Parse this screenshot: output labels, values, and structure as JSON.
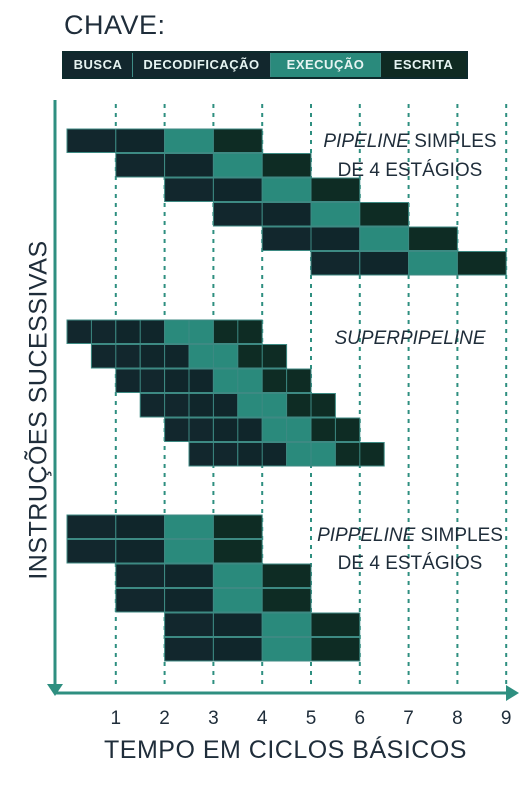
{
  "title": "CHAVE:",
  "legend": [
    {
      "label": "BUSCA",
      "color": "#12272d"
    },
    {
      "label": "DECODIFICAÇÃO",
      "color": "#12272d"
    },
    {
      "label": "EXECUÇÃO",
      "color": "#2a8a7c"
    },
    {
      "label": "ESCRITA",
      "color": "#0f2a22"
    }
  ],
  "ylabel": "INSTRUÇÕES SUCESSIVAS",
  "xlabel": "TEMPO EM CICLOS BÁSICOS",
  "ticks": [
    "1",
    "2",
    "3",
    "4",
    "5",
    "6",
    "7",
    "8",
    "9"
  ],
  "sections": [
    {
      "caption_parts": [
        [
          {
            "t": "PIPELINE",
            "i": true
          },
          {
            "t": " SIMPLES",
            "i": false
          }
        ],
        [
          {
            "t": "DE 4 ESTÁGIOS",
            "i": false
          }
        ]
      ],
      "stage_len": 1,
      "starts": [
        0,
        1,
        2,
        3,
        4,
        5
      ],
      "rows": 6
    },
    {
      "caption_parts": [
        [
          {
            "t": "SUPERPIPELINE",
            "i": true
          }
        ]
      ],
      "stage_len": 1,
      "starts": [
        0,
        0.5,
        1,
        1.5,
        2,
        2.5
      ],
      "rows": 6,
      "split": true
    },
    {
      "caption_parts": [
        [
          {
            "t": "PIPPELINE",
            "i": true
          },
          {
            "t": " SIMPLES",
            "i": false
          }
        ],
        [
          {
            "t": "DE 4 ESTÁGIOS",
            "i": false
          }
        ]
      ],
      "stage_len": 1,
      "starts": [
        0,
        0,
        1,
        1,
        2,
        2
      ],
      "rows": 6
    }
  ],
  "colors": {
    "fetch": "#12272d",
    "decode": "#10262b",
    "execute": "#2a8a7c",
    "write": "#0e2c24",
    "axis": "#2e8f80",
    "grid": "#2e8f80",
    "legend_border": "#0d2a2c"
  }
}
